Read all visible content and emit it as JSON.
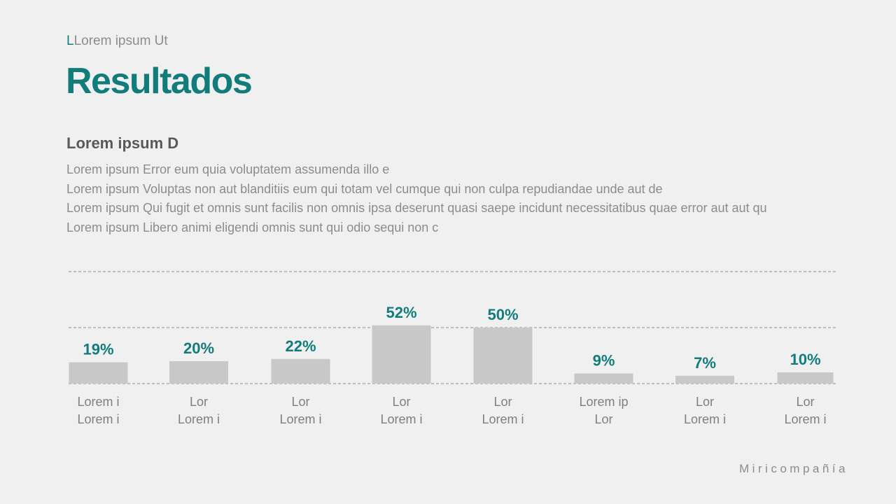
{
  "header": {
    "eyebrow_accent": "L",
    "eyebrow_rest": "Lorem ipsum Ut",
    "title": "Resultados"
  },
  "content": {
    "subtitle": "Lorem ipsum D",
    "lines": [
      "Lorem ipsum Error eum quia voluptatem assumenda illo e",
      "Lorem ipsum Voluptas non aut blanditiis eum qui totam vel cumque qui non culpa repudiandae unde aut de",
      "Lorem ipsum Qui fugit et omnis sunt facilis non omnis ipsa deserunt quasi saepe incidunt necessitatibus quae error aut aut qu",
      "Lorem ipsum Libero animi eligendi omnis sunt qui odio sequi non c"
    ]
  },
  "footer": {
    "brand": "Miricompañía"
  },
  "colors": {
    "accent": "#127c7b",
    "bar": "#c8c8c8",
    "background": "#f0f0f1"
  },
  "chart_data": {
    "type": "bar",
    "title": "",
    "xlabel": "",
    "ylabel": "",
    "categories": [
      [
        "Lorem i",
        "Lorem i"
      ],
      [
        "Lor",
        "Lorem i"
      ],
      [
        "Lor",
        "Lorem i"
      ],
      [
        "Lor",
        "Lorem i"
      ],
      [
        "Lor",
        "Lorem i"
      ],
      [
        "Lorem ip",
        "Lor"
      ],
      [
        "Lor",
        "Lorem i"
      ],
      [
        "Lor",
        "Lorem i"
      ]
    ],
    "values": [
      19,
      20,
      22,
      52,
      50,
      9,
      7,
      10
    ],
    "value_labels": [
      "19%",
      "20%",
      "22%",
      "52%",
      "50%",
      "9%",
      "7%",
      "10%"
    ],
    "unit": "%",
    "ylim": [
      0,
      100
    ],
    "gridlines": [
      0,
      50,
      100
    ]
  }
}
